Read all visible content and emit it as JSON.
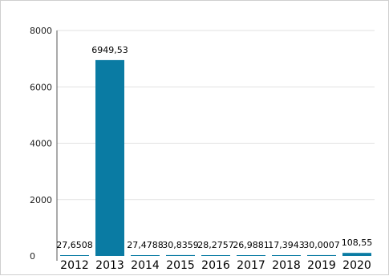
{
  "chart_data": {
    "type": "bar",
    "categories": [
      "2012",
      "2013",
      "2014",
      "2015",
      "2016",
      "2017",
      "2018",
      "2019",
      "2020"
    ],
    "values": [
      27.6508,
      6949.53,
      27.4788,
      30.8359,
      28.2757,
      26.9881,
      17.3943,
      30.0007,
      108.55
    ],
    "data_labels": [
      "27,6508",
      "6949,53",
      "27,4788",
      "30,8359",
      "28,2757",
      "26,9881",
      "17,3943",
      "30,0007",
      "108,55"
    ],
    "ylim": [
      0,
      8000
    ],
    "yticks": [
      0,
      2000,
      4000,
      6000,
      8000
    ],
    "ytick_labels": [
      "0",
      "2000",
      "4000",
      "6000",
      "8000"
    ],
    "grid": true,
    "colors": {
      "bar": "#0a7ba3",
      "grid": "#e2e2e2",
      "axis": "#555555"
    }
  }
}
